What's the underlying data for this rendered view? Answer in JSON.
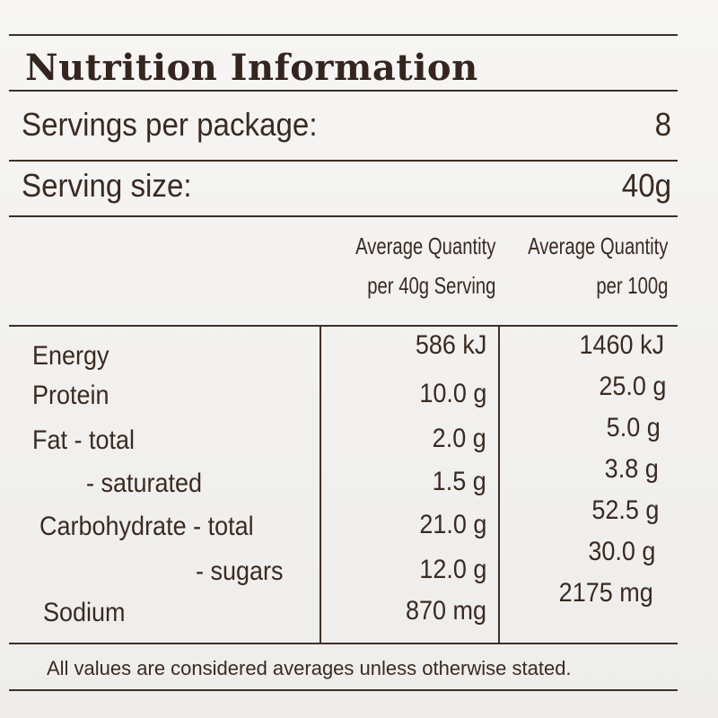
{
  "title": "Nutrition Information",
  "servings": {
    "label": "Servings per package:",
    "value": "8"
  },
  "serving_size": {
    "label": "Serving size:",
    "value": "40g"
  },
  "columns": [
    {
      "line1": "Average Quantity",
      "line2": "per 40g Serving"
    },
    {
      "line1": "Average Quantity",
      "line2": "per 100g"
    }
  ],
  "rows": [
    {
      "label": "Energy",
      "per_serving": "586 kJ",
      "per_100g": "1460 kJ"
    },
    {
      "label": "Protein",
      "per_serving": "10.0 g",
      "per_100g": "25.0 g"
    },
    {
      "label": "Fat - total",
      "per_serving": "2.0 g",
      "per_100g": "5.0 g"
    },
    {
      "label": "- saturated",
      "per_serving": "1.5 g",
      "per_100g": "3.8 g"
    },
    {
      "label": "Carbohydrate - total",
      "per_serving": "21.0 g",
      "per_100g": "52.5 g"
    },
    {
      "label": "- sugars",
      "per_serving": "12.0 g",
      "per_100g": "30.0 g"
    },
    {
      "label": "Sodium",
      "per_serving": "870 mg",
      "per_100g": "2175 mg"
    }
  ],
  "footnote": "All values are considered averages unless otherwise stated."
}
